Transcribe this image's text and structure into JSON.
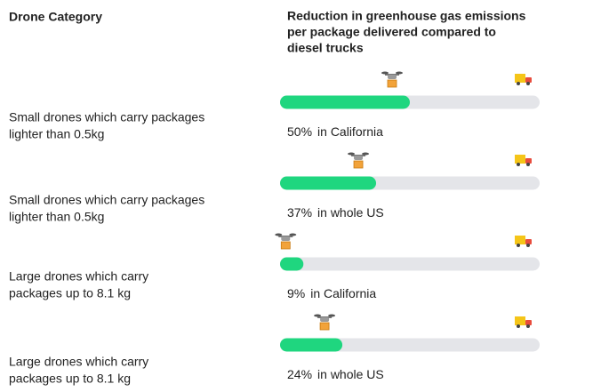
{
  "chart_data": {
    "type": "progress",
    "category_header": "Drone Category",
    "value_header": [
      "Reduction in greenhouse gas emissions",
      "per package delivered compared to",
      "diesel trucks"
    ],
    "categories": [
      [
        "Small drones which carry packages",
        "lighter than 0.5kg"
      ],
      [
        "Small drones which carry packages",
        "lighter than 0.5kg"
      ],
      [
        "Large drones which carry",
        "packages up to 8.1 kg"
      ],
      [
        "Large drones which carry",
        "packages up to 8.1 kg"
      ]
    ],
    "values": [
      50,
      37,
      9,
      24
    ],
    "value_labels": [
      "50%",
      "37%",
      "9%",
      "24%"
    ],
    "regions": [
      "in California",
      "in whole US",
      "in California",
      "in whole US"
    ],
    "xlim": [
      0,
      100
    ],
    "color": "#1fd67f",
    "track_color": "#e4e5e9"
  }
}
